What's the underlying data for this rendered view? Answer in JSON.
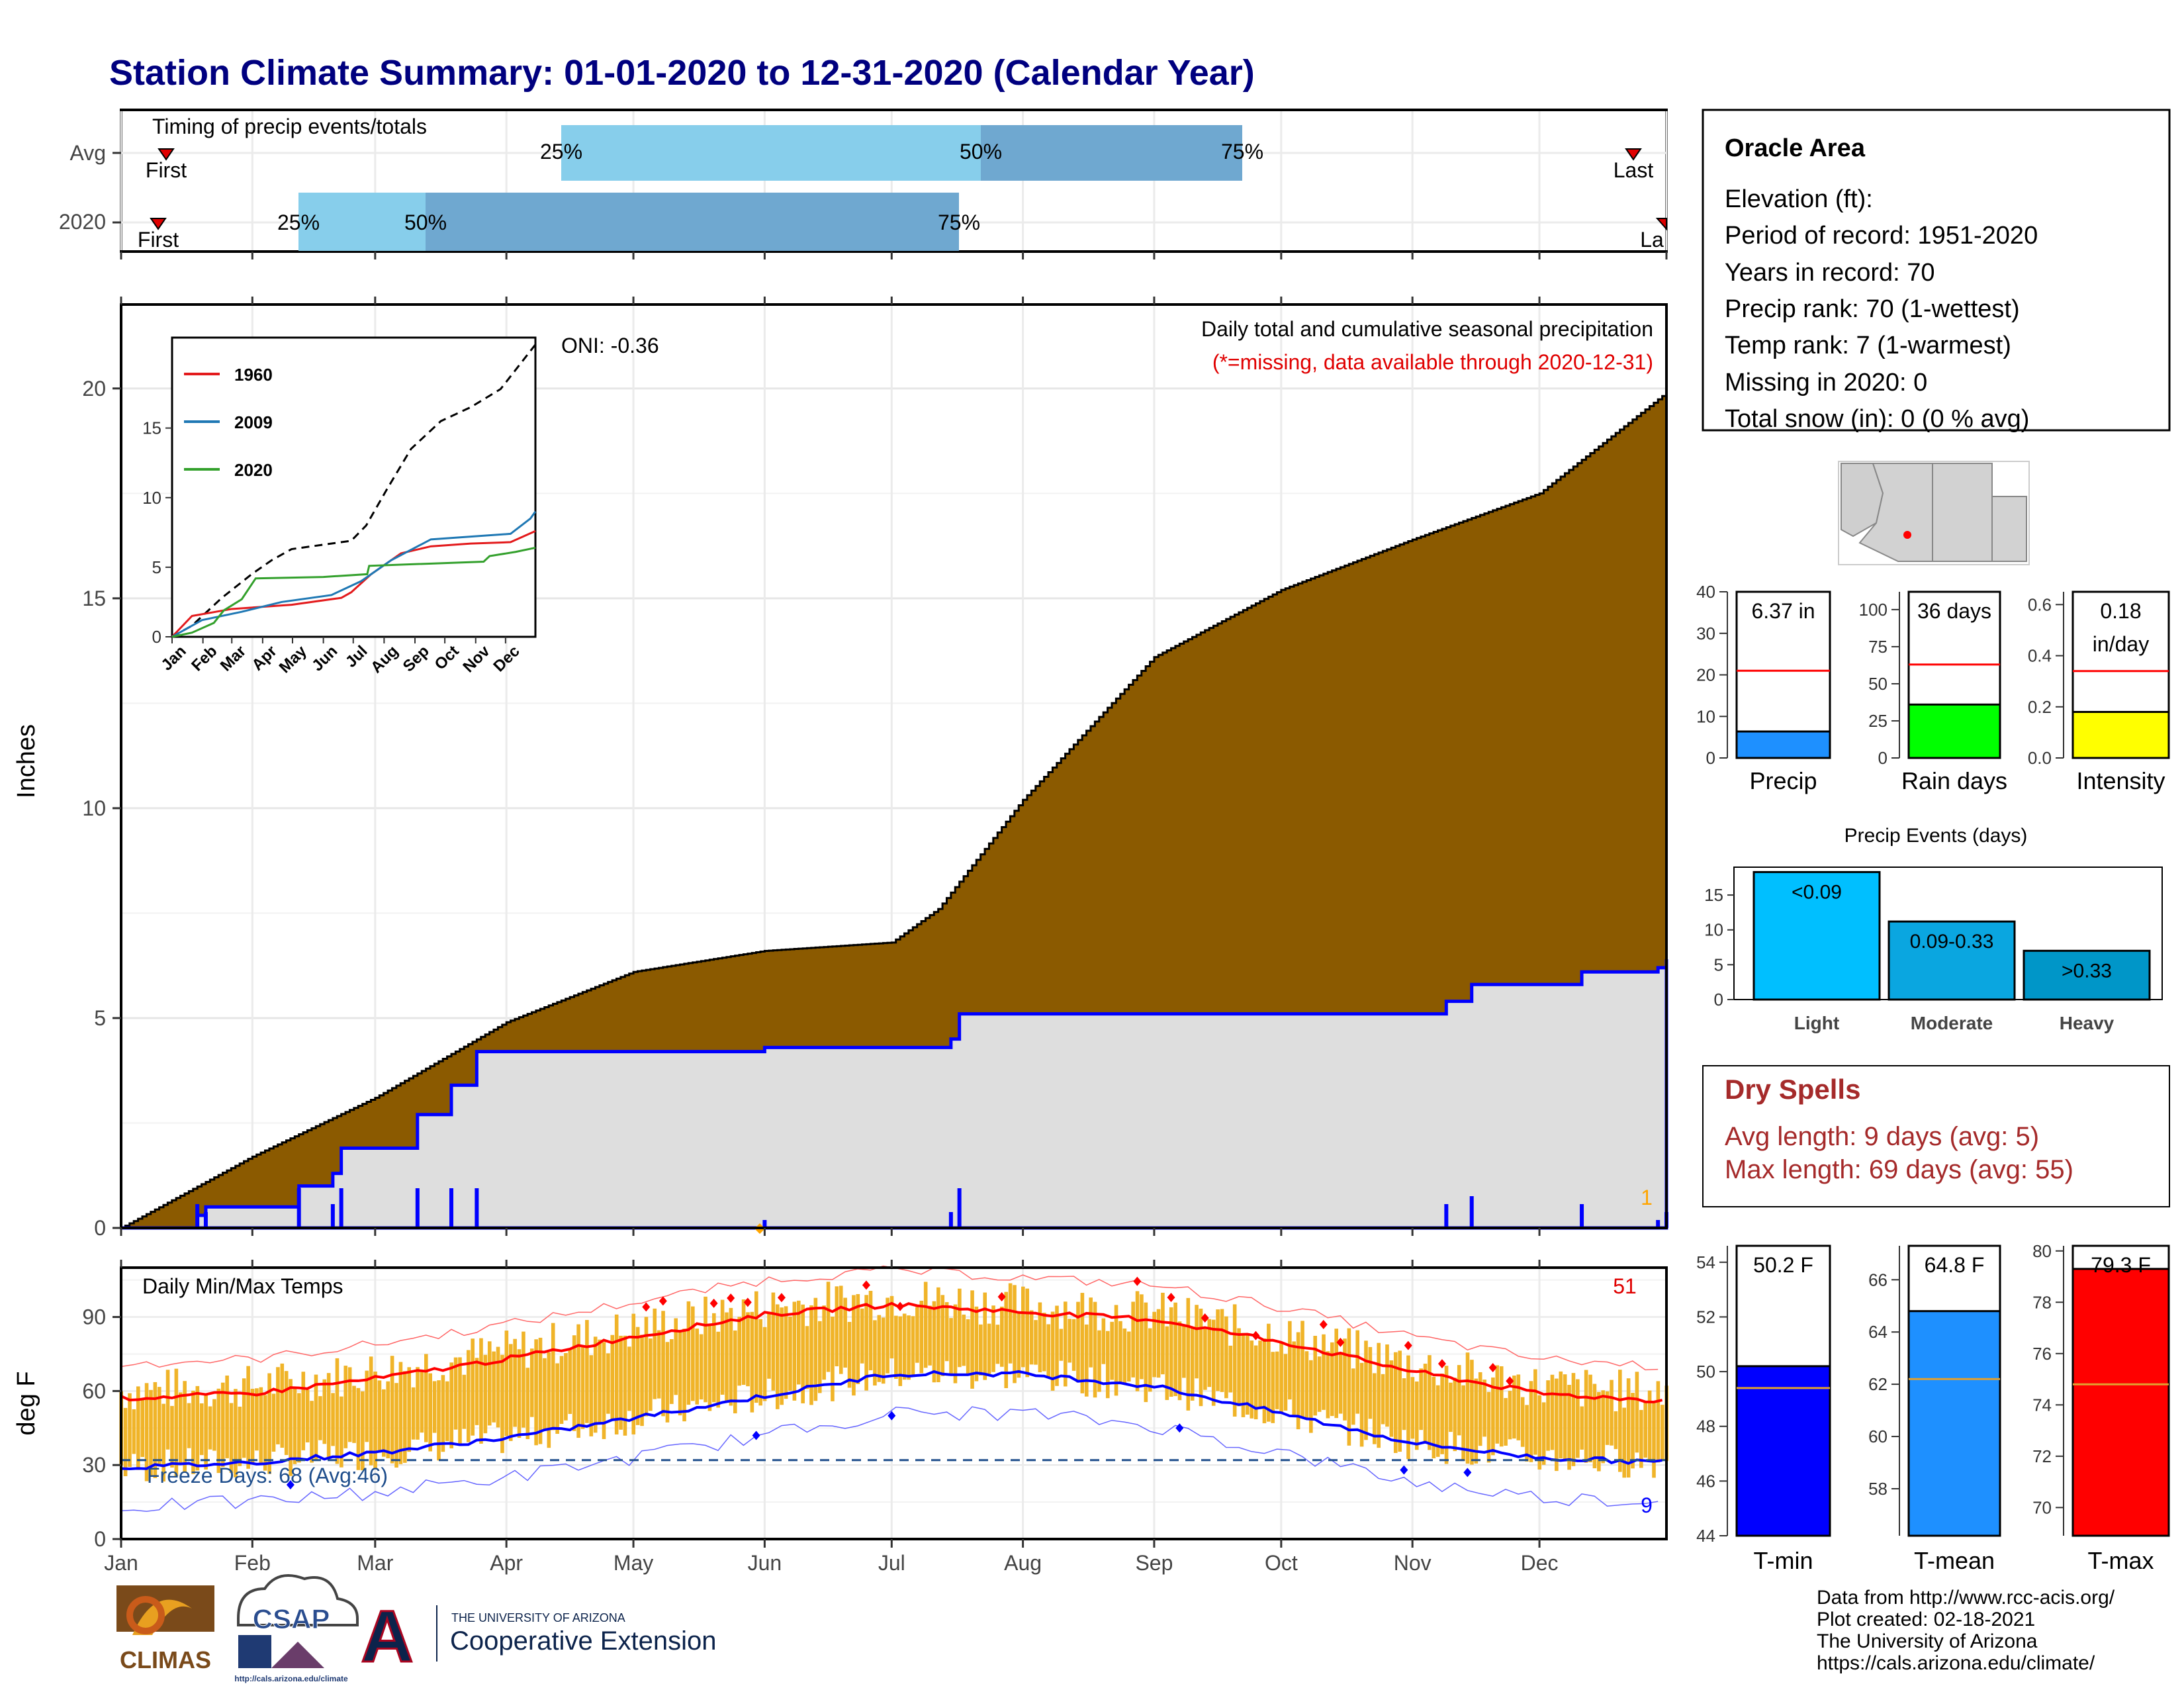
{
  "title": "Station Climate Summary: 01-01-2020 to 12-31-2020 (Calendar Year)",
  "colors": {
    "title": "#00007f",
    "brown": "#8b5a00",
    "grey": "#dedede",
    "blue": "#0000ff",
    "red": "#ff0000",
    "gold": "#f0b429",
    "green": "#00ff00",
    "yellow": "#ffff00",
    "lightblue": "#87ceeb",
    "midblue": "#6fa8d0",
    "dryspell": "#a52a2a",
    "dashed": "#1f4e8c"
  },
  "timing": {
    "title": "Timing of precip events/totals",
    "rows": [
      {
        "label": "Avg",
        "first_label": "First",
        "last_label": "Last",
        "p25": "25%",
        "p50": "50%",
        "p75": "75%"
      },
      {
        "label": "2020",
        "first_label": "First",
        "last_label": "La",
        "p25": "25%",
        "p50": "50%",
        "p75": "75%"
      }
    ]
  },
  "info_box": {
    "station": "Oracle Area",
    "lines": [
      "Elevation (ft):",
      "Period of record: 1951-2020",
      "Years in record: 70",
      "Precip rank: 70 (1-wettest)",
      "Temp rank: 7 (1-warmest)",
      "Missing in 2020: 0",
      "Total snow (in): 0 (0 % avg)"
    ]
  },
  "precip_panel": {
    "ylabel": "Inches",
    "annotation_line1": "Daily total and cumulative seasonal precipitation",
    "annotation_line2": "(*=missing, data available through 2020-12-31)",
    "oni": "ONI: -0.36",
    "corner_count": "1",
    "yticks": [
      "0",
      "5",
      "10",
      "15",
      "20"
    ]
  },
  "inset": {
    "yticks": [
      "0",
      "5",
      "10",
      "15"
    ],
    "months": [
      "Jan",
      "Feb",
      "Mar",
      "Apr",
      "May",
      "Jun",
      "Jul",
      "Aug",
      "Sep",
      "Oct",
      "Nov",
      "Dec"
    ],
    "legend": [
      "1960",
      "2009",
      "2020"
    ]
  },
  "temp_panel": {
    "ylabel": "deg F",
    "title": "Daily Min/Max Temps",
    "hot_count": "51",
    "cold_count": "9",
    "freeze_label": "Freeze Days: 68 (Avg:46)",
    "yticks": [
      "0",
      "30",
      "60",
      "90"
    ],
    "months": [
      "Jan",
      "Feb",
      "Mar",
      "Apr",
      "May",
      "Jun",
      "Jul",
      "Aug",
      "Sep",
      "Oct",
      "Nov",
      "Dec"
    ]
  },
  "summary_bars": {
    "precip": {
      "label": "Precip",
      "value_label": "6.37 in",
      "value": 6.37,
      "avg": 21,
      "yticks": [
        "0",
        "10",
        "20",
        "30",
        "40"
      ]
    },
    "raindays": {
      "label": "Rain days",
      "value_label": "36 days",
      "value": 36,
      "avg": 63,
      "yticks": [
        "0",
        "25",
        "50",
        "75",
        "100"
      ]
    },
    "intensity": {
      "label": "Intensity",
      "value_label1": "0.18",
      "value_label2": "in/day",
      "value": 0.18,
      "avg": 0.34,
      "yticks": [
        "0.0",
        "0.2",
        "0.4",
        "0.6"
      ]
    }
  },
  "events": {
    "title": "Precip Events (days)",
    "yticks": [
      "0",
      "5",
      "10",
      "15"
    ],
    "bars": [
      {
        "label": "Light",
        "inner": "<0.09",
        "value": 18.3
      },
      {
        "label": "Moderate",
        "inner": "0.09-0.33",
        "value": 11.2
      },
      {
        "label": "Heavy",
        "inner": ">0.33",
        "value": 7.0
      }
    ]
  },
  "dry_spells": {
    "title": "Dry Spells",
    "line1": "Avg length: 9 days (avg: 5)",
    "line2": "Max length: 69 days (avg: 55)"
  },
  "temp_bars": {
    "tmin": {
      "label": "T-min",
      "value_label": "50.2 F",
      "value": 50.2,
      "avg": 49.4,
      "yticks": [
        "44",
        "46",
        "48",
        "50",
        "52",
        "54"
      ]
    },
    "tmean": {
      "label": "T-mean",
      "value_label": "64.8 F",
      "value": 64.8,
      "avg": 62.2,
      "yticks": [
        "58",
        "60",
        "62",
        "64",
        "66"
      ]
    },
    "tmax": {
      "label": "T-max",
      "value_label": "79.3 F",
      "value": 79.3,
      "avg": 74.8,
      "yticks": [
        "70",
        "72",
        "74",
        "76",
        "78",
        "80"
      ]
    }
  },
  "footer": {
    "lines": [
      "Data from http://www.rcc-acis.org/",
      "Plot created: 02-18-2021",
      "The University of Arizona",
      "https://cals.arizona.edu/climate/"
    ],
    "logo_climas": "CLIMAS",
    "logo_csap": "CSAP",
    "logo_csap_url": "http://cals.arizona.edu/climate",
    "ua_line1": "THE UNIVERSITY OF ARIZONA",
    "ua_line2": "Cooperative Extension",
    "ua_letter": "A"
  },
  "chart_data": [
    {
      "type": "area",
      "title": "Daily total and cumulative seasonal precipitation",
      "ylabel": "Inches",
      "ylim": [
        0,
        22
      ],
      "x": [
        "Jan",
        "Feb",
        "Mar",
        "Apr",
        "May",
        "Jun",
        "Jul",
        "Aug",
        "Sep",
        "Oct",
        "Nov",
        "Dec"
      ],
      "series": [
        {
          "name": "Average cumulative",
          "points": [
            [
              0,
              0
            ],
            [
              31,
              1.7
            ],
            [
              60,
              3.1
            ],
            [
              91,
              4.9
            ],
            [
              121,
              6.1
            ],
            [
              152,
              6.6
            ],
            [
              182,
              6.8
            ],
            [
              193,
              7.6
            ],
            [
              213,
              10.2
            ],
            [
              244,
              13.6
            ],
            [
              274,
              15.2
            ],
            [
              305,
              16.4
            ],
            [
              335,
              17.5
            ],
            [
              365,
              19.9
            ]
          ]
        },
        {
          "name": "2020 cumulative",
          "points": [
            [
              0,
              0
            ],
            [
              18,
              0.3
            ],
            [
              20,
              0.5
            ],
            [
              40,
              0.5
            ],
            [
              42,
              1.0
            ],
            [
              50,
              1.3
            ],
            [
              52,
              1.9
            ],
            [
              68,
              1.9
            ],
            [
              70,
              2.7
            ],
            [
              77,
              2.7
            ],
            [
              78,
              3.4
            ],
            [
              84,
              4.2
            ],
            [
              152,
              4.3
            ],
            [
              196,
              4.5
            ],
            [
              198,
              5.1
            ],
            [
              313,
              5.4
            ],
            [
              319,
              5.8
            ],
            [
              343,
              5.8
            ],
            [
              345,
              6.1
            ],
            [
              363,
              6.2
            ],
            [
              365,
              6.4
            ]
          ]
        }
      ]
    },
    {
      "type": "line",
      "title": "Daily Min/Max Temps",
      "ylabel": "deg F",
      "ylim": [
        0,
        110
      ],
      "series": [
        {
          "name": "Avg max",
          "points": [
            [
              0,
              57
            ],
            [
              31,
              59
            ],
            [
              60,
              65
            ],
            [
              91,
              73
            ],
            [
              121,
              82
            ],
            [
              152,
              91
            ],
            [
              182,
              95
            ],
            [
              213,
              92
            ],
            [
              244,
              89
            ],
            [
              274,
              80
            ],
            [
              305,
              68
            ],
            [
              335,
              59
            ],
            [
              365,
              56
            ]
          ]
        },
        {
          "name": "Avg min",
          "points": [
            [
              0,
              29
            ],
            [
              31,
              31
            ],
            [
              60,
              35
            ],
            [
              91,
              41
            ],
            [
              121,
              49
            ],
            [
              152,
              58
            ],
            [
              182,
              67
            ],
            [
              213,
              67
            ],
            [
              244,
              62
            ],
            [
              274,
              51
            ],
            [
              305,
              39
            ],
            [
              335,
              33
            ],
            [
              365,
              31
            ]
          ]
        }
      ]
    }
  ]
}
